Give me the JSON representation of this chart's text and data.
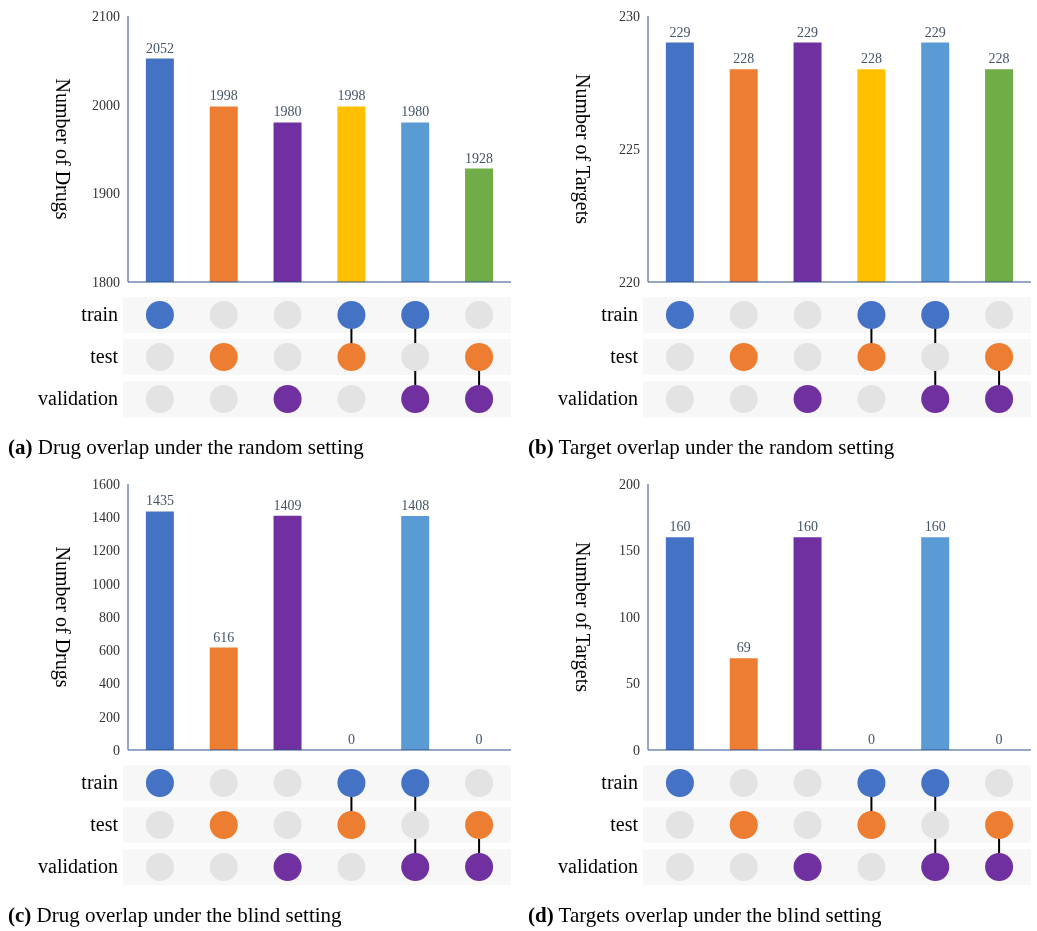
{
  "chart_data": [
    {
      "type": "bar",
      "title": "(a) Drug overlap under the random setting",
      "ylabel": "Number of Drugs",
      "categories": [
        null,
        null,
        null,
        null,
        null,
        null
      ],
      "values": [
        2052,
        1998,
        1980,
        1998,
        1980,
        1928
      ],
      "colors": [
        "#4472c4",
        "#ed7d31",
        "#7030a0",
        "#ffc000",
        "#5b9bd5",
        "#70ad47"
      ],
      "ylim": [
        1800,
        2100
      ],
      "yticks": [
        1800,
        1900,
        2000,
        2100
      ],
      "data_labels": true,
      "annotations": [
        "train",
        "test",
        "validation"
      ]
    },
    {
      "type": "bar",
      "title": "(b) Target overlap under the random setting",
      "ylabel": "Number of Targets",
      "categories": [
        null,
        null,
        null,
        null,
        null,
        null
      ],
      "values": [
        229,
        228,
        229,
        228,
        229,
        228
      ],
      "colors": [
        "#4472c4",
        "#ed7d31",
        "#7030a0",
        "#ffc000",
        "#5b9bd5",
        "#70ad47"
      ],
      "ylim": [
        220,
        230
      ],
      "yticks": [
        220,
        225,
        230
      ],
      "data_labels": true,
      "annotations": [
        "train",
        "test",
        "validation"
      ]
    },
    {
      "type": "bar",
      "title": "(c) Drug overlap under the blind setting",
      "ylabel": "Number of Drugs",
      "categories": [
        null,
        null,
        null,
        null,
        null,
        null
      ],
      "values": [
        1435,
        616,
        1409,
        0,
        1408,
        0
      ],
      "colors": [
        "#4472c4",
        "#ed7d31",
        "#7030a0",
        "#ffc000",
        "#5b9bd5",
        "#70ad47"
      ],
      "ylim": [
        0,
        1600
      ],
      "yticks": [
        0,
        200,
        400,
        600,
        800,
        1000,
        1200,
        1400,
        1600
      ],
      "data_labels": true,
      "annotations": [
        "train",
        "test",
        "validation"
      ]
    },
    {
      "type": "bar",
      "title": "(d) Targets overlap under the blind setting",
      "ylabel": "Number of Targets",
      "categories": [
        null,
        null,
        null,
        null,
        null,
        null
      ],
      "values": [
        160,
        69,
        160,
        0,
        160,
        0
      ],
      "colors": [
        "#4472c4",
        "#ed7d31",
        "#7030a0",
        "#ffc000",
        "#5b9bd5",
        "#70ad47"
      ],
      "ylim": [
        0,
        200
      ],
      "yticks": [
        0,
        50,
        100,
        150,
        200
      ],
      "data_labels": true,
      "annotations": [
        "train",
        "test",
        "validation"
      ]
    }
  ]
}
